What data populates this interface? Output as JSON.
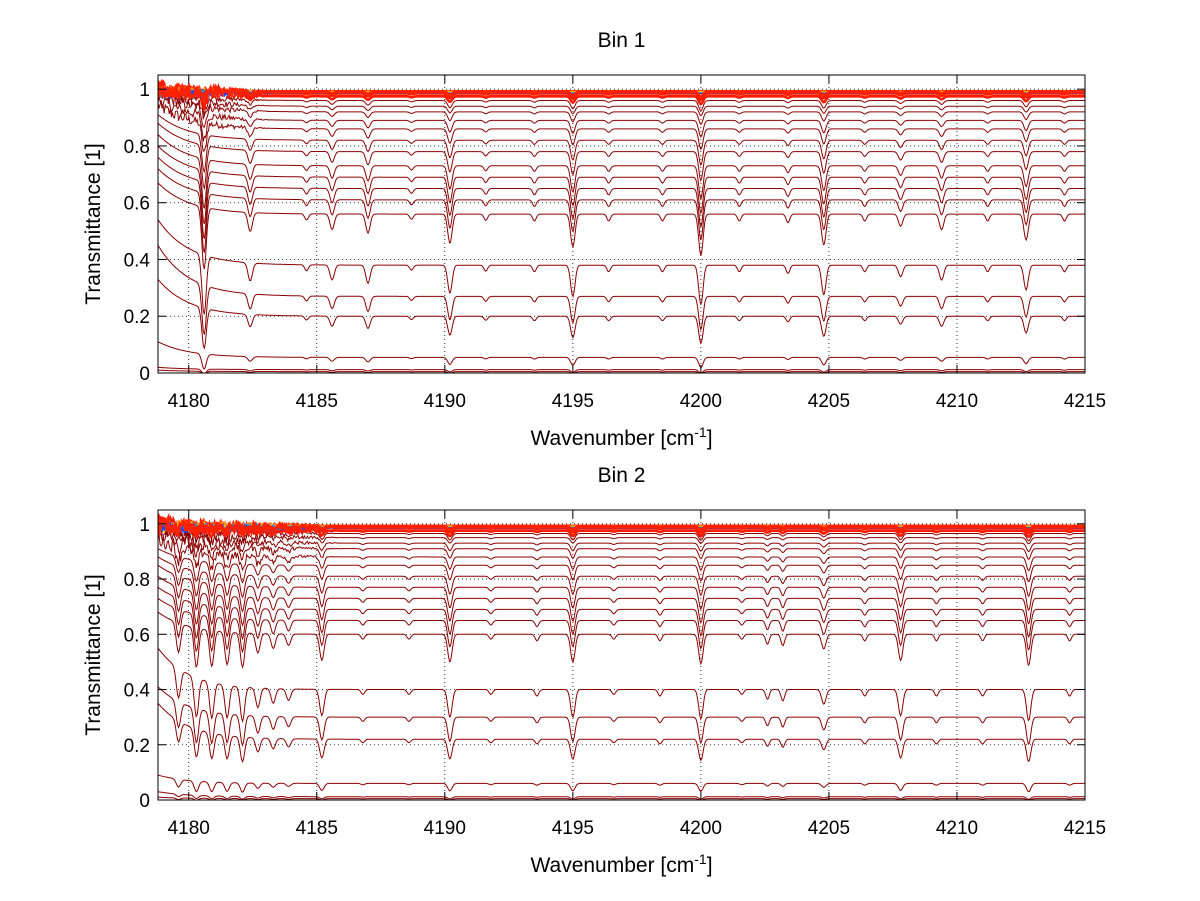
{
  "chart_data": [
    {
      "type": "line",
      "title": "Bin 1",
      "xlabel": "Wavenumber [cm",
      "xlabel_sup": "-1",
      "xlabel_end": "]",
      "ylabel": "Transmittance [1]",
      "xlim": [
        4178.8,
        4215
      ],
      "ylim": [
        0,
        1.05
      ],
      "xticks": [
        4180,
        4185,
        4190,
        4195,
        4200,
        4205,
        4210,
        4215
      ],
      "yticks": [
        0,
        0.2,
        0.4,
        0.6,
        0.8,
        1
      ],
      "ytick_labels": [
        "0",
        "0.2",
        "0.4",
        "0.6",
        "0.8",
        "1"
      ],
      "grid": true,
      "line_color": "#8b0000",
      "top_line_colors": [
        "#ff2a00",
        "#ff6000",
        "#ffa000",
        "#ffd000",
        "#00a0ff",
        "#2040ff"
      ],
      "baselines": [
        0.0,
        0.005,
        0.012,
        0.055,
        0.2,
        0.27,
        0.38,
        0.56,
        0.61,
        0.65,
        0.69,
        0.73,
        0.78,
        0.82,
        0.86,
        0.89,
        0.92,
        0.94,
        0.96,
        0.975,
        0.985,
        0.99
      ],
      "edge_start": [
        0.0,
        0.01,
        0.02,
        0.11,
        0.33,
        0.45,
        0.54,
        0.67,
        0.72,
        0.76,
        0.8,
        0.84,
        0.88,
        0.91,
        0.94,
        0.96,
        0.98,
        0.99,
        1.0,
        1.0,
        1.0,
        1.0
      ],
      "lines": [
        {
          "x": 4180.6,
          "depth": 1.8,
          "width": 0.12
        },
        {
          "x": 4182.4,
          "depth": 0.55,
          "width": 0.12
        },
        {
          "x": 4184.6,
          "depth": 0.18,
          "width": 0.1
        },
        {
          "x": 4185.6,
          "depth": 0.45,
          "width": 0.12
        },
        {
          "x": 4187.0,
          "depth": 0.55,
          "width": 0.12
        },
        {
          "x": 4188.7,
          "depth": 0.15,
          "width": 0.1
        },
        {
          "x": 4190.2,
          "depth": 0.85,
          "width": 0.12
        },
        {
          "x": 4191.6,
          "depth": 0.18,
          "width": 0.1
        },
        {
          "x": 4193.5,
          "depth": 0.2,
          "width": 0.1
        },
        {
          "x": 4195.0,
          "depth": 0.95,
          "width": 0.12
        },
        {
          "x": 4196.4,
          "depth": 0.2,
          "width": 0.1
        },
        {
          "x": 4198.5,
          "depth": 0.2,
          "width": 0.1
        },
        {
          "x": 4200.0,
          "depth": 1.2,
          "width": 0.12
        },
        {
          "x": 4201.5,
          "depth": 0.2,
          "width": 0.1
        },
        {
          "x": 4203.4,
          "depth": 0.25,
          "width": 0.1
        },
        {
          "x": 4204.8,
          "depth": 0.9,
          "width": 0.12
        },
        {
          "x": 4206.4,
          "depth": 0.2,
          "width": 0.1
        },
        {
          "x": 4207.8,
          "depth": 0.35,
          "width": 0.12
        },
        {
          "x": 4209.4,
          "depth": 0.45,
          "width": 0.12
        },
        {
          "x": 4211.2,
          "depth": 0.2,
          "width": 0.1
        },
        {
          "x": 4212.7,
          "depth": 0.75,
          "width": 0.12
        },
        {
          "x": 4214.2,
          "depth": 0.2,
          "width": 0.1
        }
      ],
      "noise_region": [
        4178.8,
        4183.2
      ]
    },
    {
      "type": "line",
      "title": "Bin 2",
      "xlabel": "Wavenumber [cm",
      "xlabel_sup": "-1",
      "xlabel_end": "]",
      "ylabel": "Transmittance [1]",
      "xlim": [
        4178.8,
        4215
      ],
      "ylim": [
        0,
        1.05
      ],
      "xticks": [
        4180,
        4185,
        4190,
        4195,
        4200,
        4205,
        4210,
        4215
      ],
      "yticks": [
        0,
        0.2,
        0.4,
        0.6,
        0.8,
        1
      ],
      "ytick_labels": [
        "0",
        "0.2",
        "0.4",
        "0.6",
        "0.8",
        "1"
      ],
      "grid": true,
      "line_color": "#8b0000",
      "top_line_colors": [
        "#ff2a00",
        "#ff6000",
        "#ffa000",
        "#ffd000",
        "#00a0ff",
        "#2040ff"
      ],
      "baselines": [
        0.0,
        0.005,
        0.012,
        0.06,
        0.22,
        0.3,
        0.4,
        0.6,
        0.65,
        0.69,
        0.73,
        0.77,
        0.81,
        0.85,
        0.88,
        0.91,
        0.93,
        0.95,
        0.965,
        0.975,
        0.985,
        0.99
      ],
      "edge_start": [
        0.0,
        0.01,
        0.03,
        0.09,
        0.35,
        0.41,
        0.55,
        0.68,
        0.73,
        0.77,
        0.81,
        0.85,
        0.88,
        0.91,
        0.94,
        0.96,
        0.98,
        0.99,
        1.0,
        1.0,
        1.0,
        1.0
      ],
      "lines": [
        {
          "x": 4179.6,
          "depth": 0.9,
          "width": 0.12
        },
        {
          "x": 4180.3,
          "depth": 1.2,
          "width": 0.12
        },
        {
          "x": 4180.9,
          "depth": 1.1,
          "width": 0.12
        },
        {
          "x": 4181.5,
          "depth": 1.0,
          "width": 0.12
        },
        {
          "x": 4182.1,
          "depth": 1.05,
          "width": 0.12
        },
        {
          "x": 4182.7,
          "depth": 0.6,
          "width": 0.12
        },
        {
          "x": 4183.3,
          "depth": 0.45,
          "width": 0.12
        },
        {
          "x": 4183.9,
          "depth": 0.35,
          "width": 0.12
        },
        {
          "x": 4185.2,
          "depth": 0.8,
          "width": 0.12
        },
        {
          "x": 4186.8,
          "depth": 0.15,
          "width": 0.1
        },
        {
          "x": 4188.6,
          "depth": 0.15,
          "width": 0.1
        },
        {
          "x": 4190.2,
          "depth": 0.85,
          "width": 0.12
        },
        {
          "x": 4191.8,
          "depth": 0.15,
          "width": 0.1
        },
        {
          "x": 4193.6,
          "depth": 0.2,
          "width": 0.1
        },
        {
          "x": 4195.0,
          "depth": 0.85,
          "width": 0.12
        },
        {
          "x": 4196.6,
          "depth": 0.15,
          "width": 0.1
        },
        {
          "x": 4198.4,
          "depth": 0.2,
          "width": 0.1
        },
        {
          "x": 4200.0,
          "depth": 0.9,
          "width": 0.12
        },
        {
          "x": 4201.6,
          "depth": 0.15,
          "width": 0.1
        },
        {
          "x": 4202.6,
          "depth": 0.3,
          "width": 0.1
        },
        {
          "x": 4203.2,
          "depth": 0.35,
          "width": 0.1
        },
        {
          "x": 4204.8,
          "depth": 0.45,
          "width": 0.12
        },
        {
          "x": 4206.4,
          "depth": 0.2,
          "width": 0.1
        },
        {
          "x": 4207.8,
          "depth": 0.8,
          "width": 0.12
        },
        {
          "x": 4209.2,
          "depth": 0.2,
          "width": 0.1
        },
        {
          "x": 4211.0,
          "depth": 0.2,
          "width": 0.1
        },
        {
          "x": 4212.8,
          "depth": 0.95,
          "width": 0.12
        },
        {
          "x": 4214.4,
          "depth": 0.2,
          "width": 0.1
        }
      ],
      "noise_region": [
        4178.8,
        4186.0
      ]
    }
  ]
}
